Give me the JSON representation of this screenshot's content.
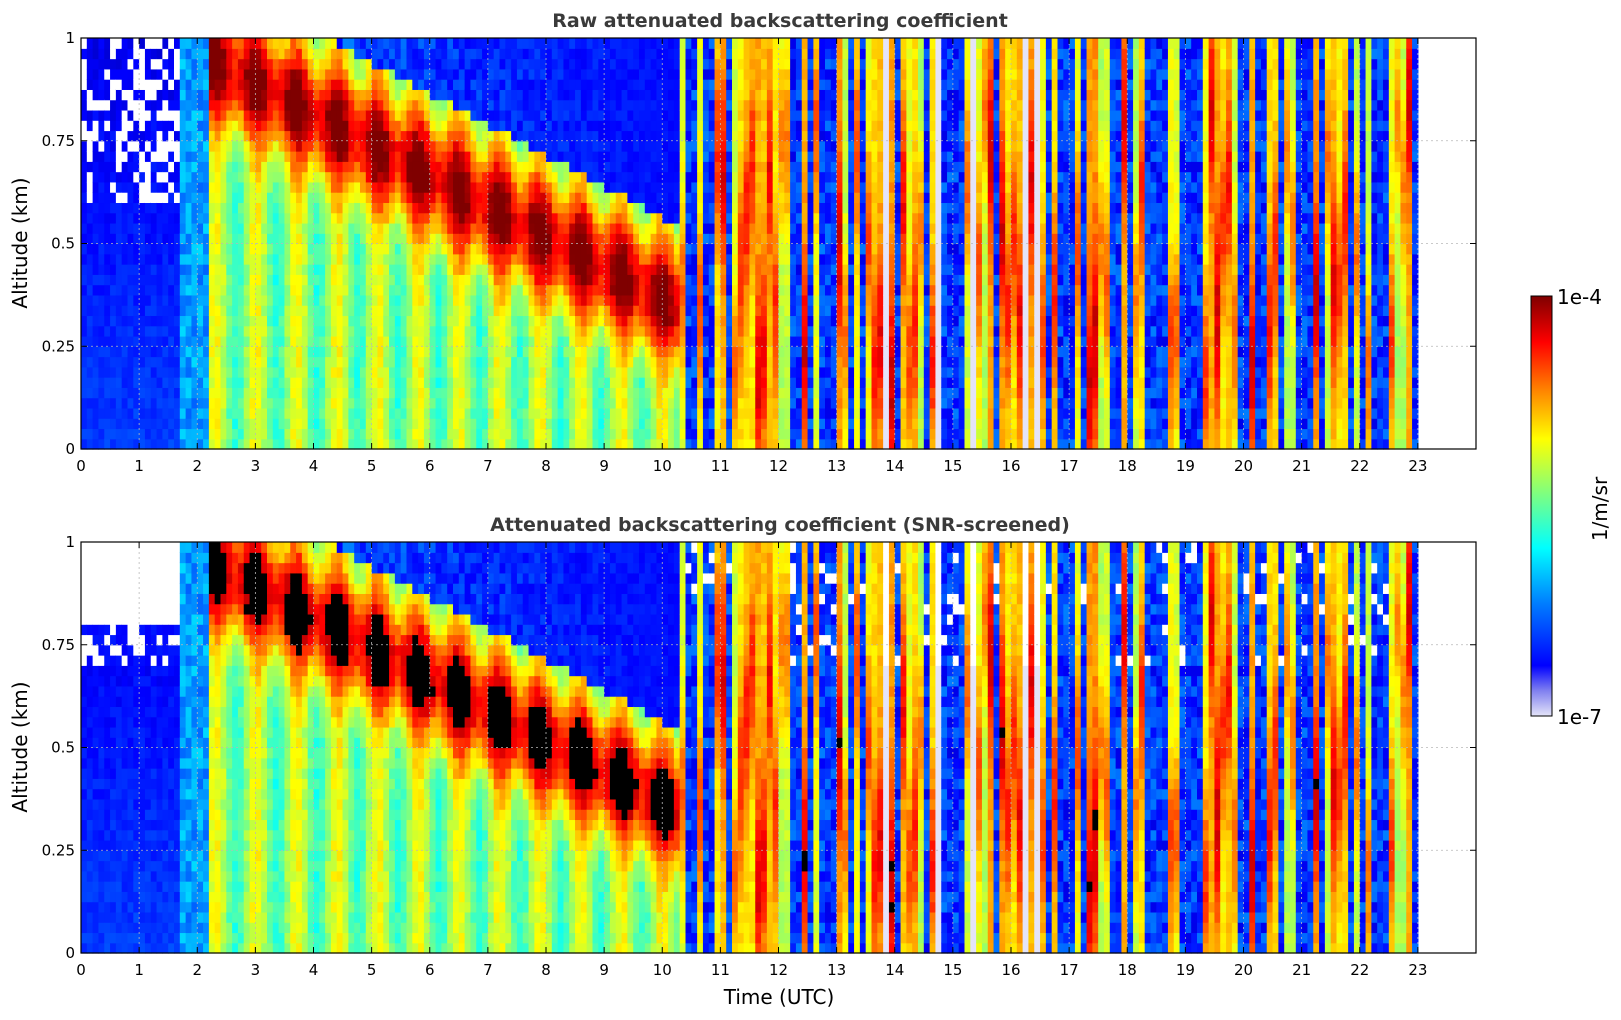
{
  "colors": {
    "jet": [
      "#00007f",
      "#0000ff",
      "#007fff",
      "#00ffff",
      "#7fff7f",
      "#ffff00",
      "#ff7f00",
      "#ff0000",
      "#7f0000"
    ],
    "low": "#e4e4f8",
    "black": "#000000"
  },
  "chart_data": [
    {
      "type": "heatmap",
      "title": "Raw attenuated backscattering coefficient",
      "xlabel": "",
      "ylabel": "Altitude (km)",
      "xlim": [
        0,
        24
      ],
      "ylim": [
        0,
        1
      ],
      "xticks": [
        "0",
        "1",
        "2",
        "3",
        "4",
        "5",
        "6",
        "7",
        "8",
        "9",
        "10",
        "11",
        "12",
        "13",
        "14",
        "15",
        "16",
        "17",
        "18",
        "19",
        "20",
        "21",
        "22",
        "23"
      ],
      "yticks": [
        "0",
        "0.25",
        "0.5",
        "0.75",
        "1"
      ],
      "grid": true,
      "data_extent_hours": [
        0,
        23
      ],
      "colorscale": "jet (log)"
    },
    {
      "type": "heatmap",
      "title": "Attenuated backscattering coefficient (SNR-screened)",
      "xlabel": "Time (UTC)",
      "ylabel": "Altitude (km)",
      "xlim": [
        0,
        24
      ],
      "ylim": [
        0,
        1
      ],
      "xticks": [
        "0",
        "1",
        "2",
        "3",
        "4",
        "5",
        "6",
        "7",
        "8",
        "9",
        "10",
        "11",
        "12",
        "13",
        "14",
        "15",
        "16",
        "17",
        "18",
        "19",
        "20",
        "21",
        "22",
        "23"
      ],
      "yticks": [
        "0",
        "0.25",
        "0.5",
        "0.75",
        "1"
      ],
      "grid": true,
      "data_extent_hours": [
        0,
        23
      ],
      "colorscale": "jet (log)"
    }
  ],
  "colorbar": {
    "max_label": "1e-4",
    "min_label": "1e-7",
    "unit_label": "1/m/sr"
  }
}
